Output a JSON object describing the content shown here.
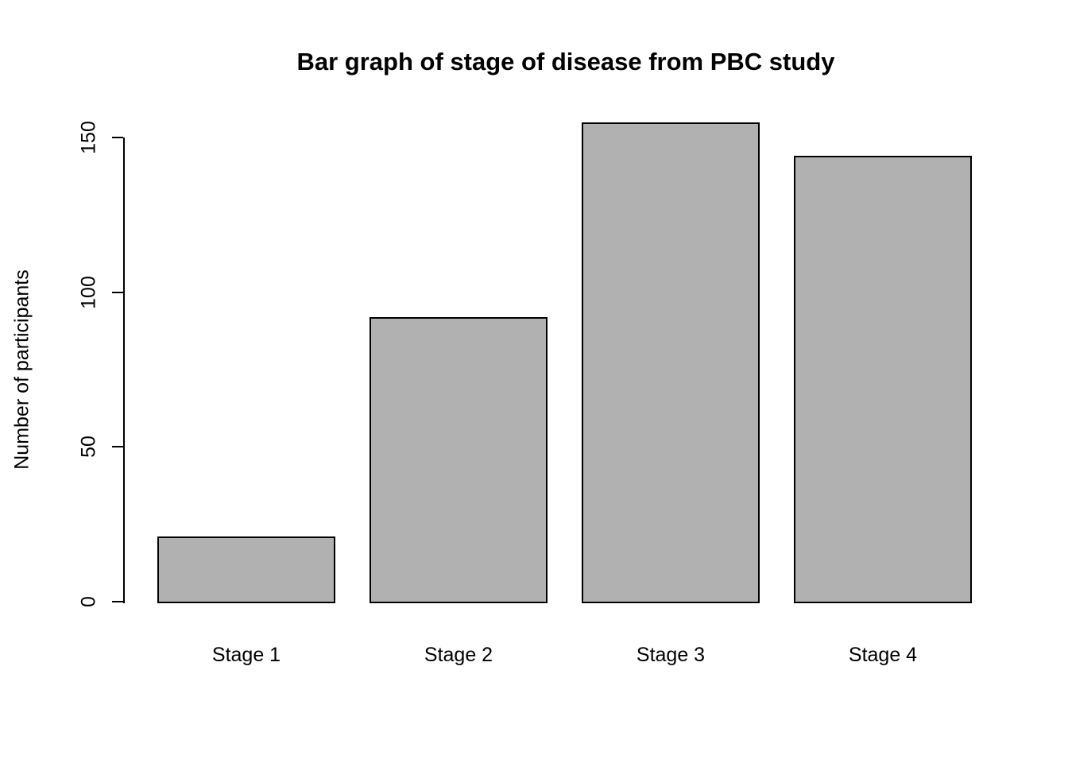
{
  "chart_data": {
    "type": "bar",
    "title": "Bar graph of stage of disease from PBC study",
    "xlabel": "",
    "ylabel": "Number of participants",
    "categories": [
      "Stage 1",
      "Stage 2",
      "Stage 3",
      "Stage 4"
    ],
    "values": [
      21,
      92,
      155,
      144
    ],
    "yticks": [
      0,
      50,
      100,
      150
    ],
    "ylim": [
      0,
      150
    ],
    "grid": false,
    "legend_position": "none",
    "bar_fill_color": "#b1b1b1",
    "bar_border_color": "#000000",
    "axis_color": "#000000",
    "text_color": "#000000",
    "background_color": "#ffffff"
  }
}
